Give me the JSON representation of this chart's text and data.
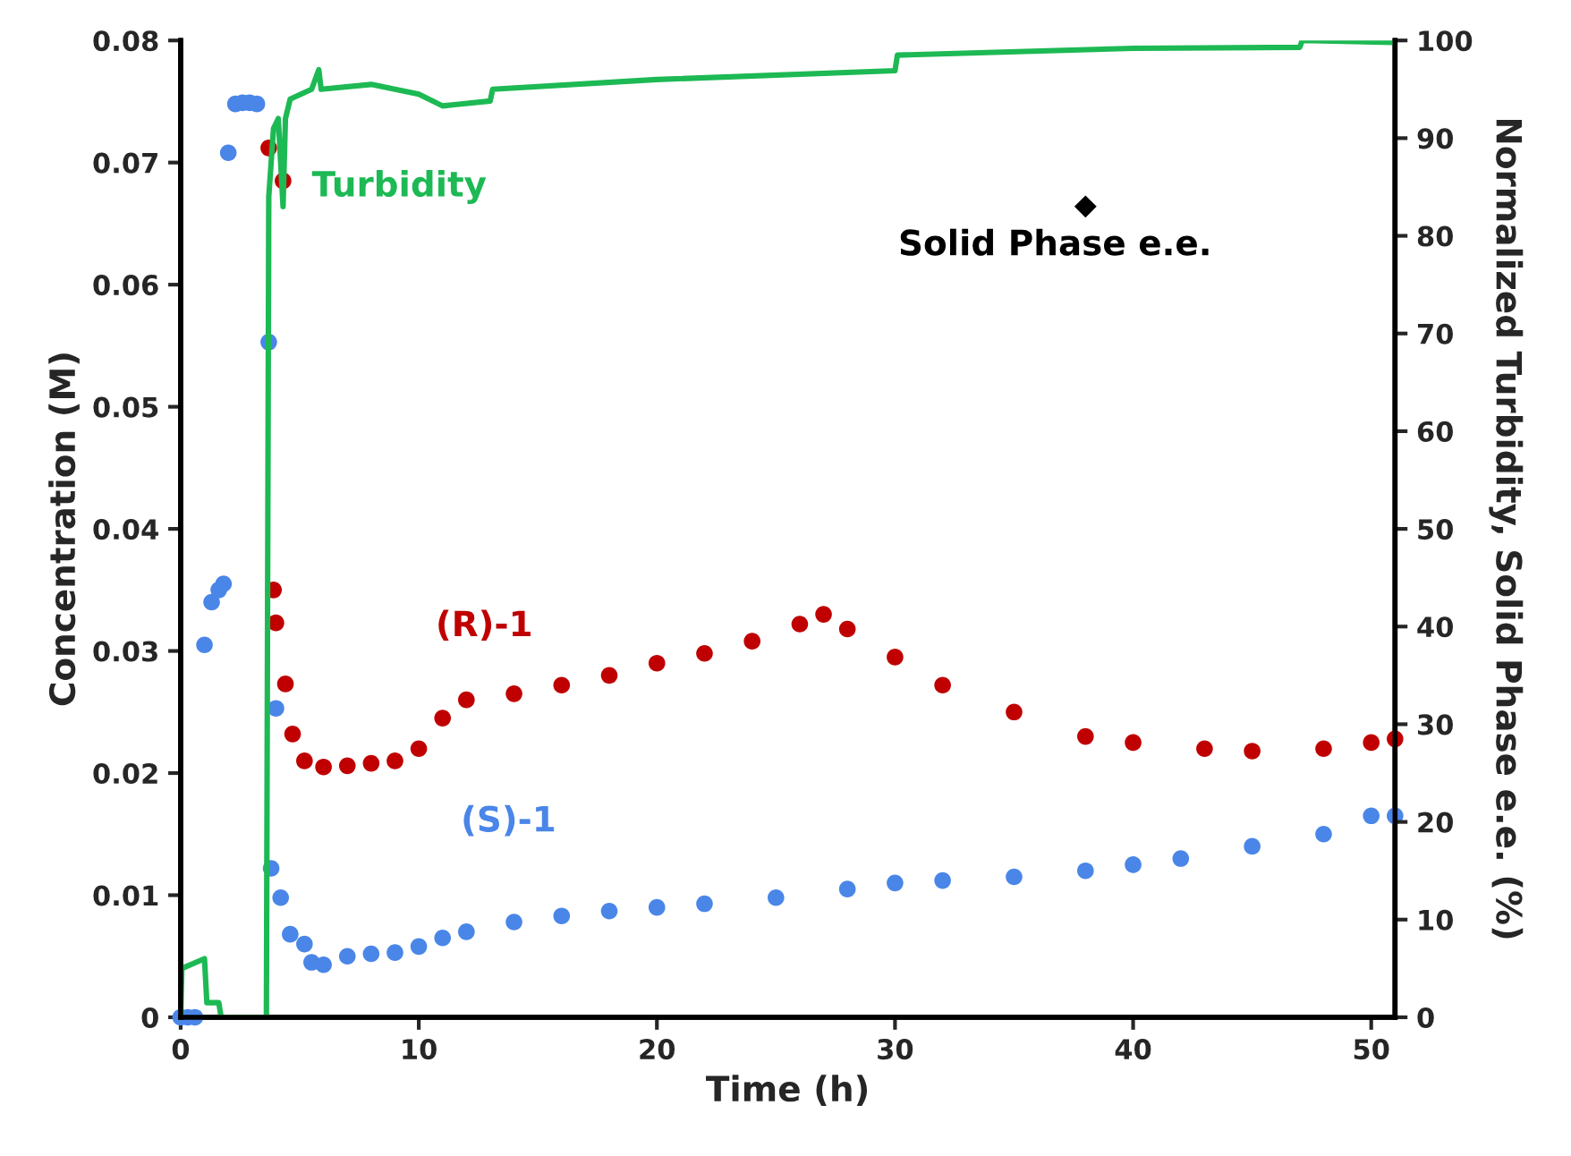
{
  "chart_data": {
    "type": "scatter",
    "xlabel": "Time (h)",
    "ylabel": "Concentration (M)",
    "y2label": "Normalized Turbidity, Solid Phase e.e. (%)",
    "xlim": [
      0,
      51
    ],
    "xticks": [
      0,
      10,
      20,
      30,
      40,
      50
    ],
    "ylim": [
      0,
      0.08
    ],
    "yticks": [
      0,
      0.01,
      0.02,
      0.03,
      0.04,
      0.05,
      0.06,
      0.07,
      0.08
    ],
    "y2lim": [
      0,
      100
    ],
    "y2ticks": [
      0,
      10,
      20,
      30,
      40,
      50,
      60,
      70,
      80,
      90,
      100
    ],
    "grid": false,
    "legend": false,
    "series": [
      {
        "name": "Turbidity",
        "type": "line",
        "axis": "y2",
        "color": "#1db954",
        "marker": "none",
        "line_style": "solid",
        "x": [
          0,
          0.05,
          1.0,
          1.1,
          1.6,
          1.7,
          3.6,
          3.7,
          3.9,
          4.1,
          4.3,
          4.4,
          4.6,
          5.5,
          5.8,
          5.9,
          8,
          10,
          11,
          13,
          13.1,
          20,
          30,
          30.1,
          40,
          47,
          47.1,
          51
        ],
        "values": [
          0,
          5,
          6,
          1.5,
          1.5,
          0,
          0,
          84,
          91,
          92,
          83,
          92,
          94,
          95,
          97,
          95,
          95.5,
          94.5,
          93.3,
          93.8,
          95,
          96,
          96.9,
          98.5,
          99.2,
          99.3,
          100,
          99.8
        ]
      },
      {
        "name": "(R)-1",
        "color": "#c00000",
        "marker": "circle",
        "x": [
          3.7,
          4.3,
          3.9,
          4.0,
          4.4,
          4.7,
          5.2,
          6,
          7,
          8,
          9,
          10,
          11,
          12,
          14,
          16,
          18,
          20,
          22,
          24,
          26,
          27,
          28,
          30,
          32,
          35,
          38,
          40,
          43,
          45,
          48,
          50,
          51
        ],
        "values": [
          0.0712,
          0.0685,
          0.035,
          0.0323,
          0.0273,
          0.0232,
          0.021,
          0.0205,
          0.0206,
          0.0208,
          0.021,
          0.022,
          0.0245,
          0.026,
          0.0265,
          0.0272,
          0.028,
          0.029,
          0.0298,
          0.0308,
          0.0322,
          0.033,
          0.0318,
          0.0295,
          0.0272,
          0.025,
          0.023,
          0.0225,
          0.022,
          0.0218,
          0.022,
          0.0225,
          0.0228
        ]
      },
      {
        "name": "(S)-1",
        "color": "#4a86e8",
        "marker": "circle",
        "x": [
          0,
          0.3,
          0.6,
          1.0,
          1.3,
          1.6,
          1.8,
          2.0,
          2.3,
          2.6,
          2.9,
          3.2,
          3.7,
          4.0,
          3.8,
          4.2,
          4.6,
          5.2,
          5.5,
          6,
          7,
          8,
          9,
          10,
          11,
          12,
          14,
          16,
          18,
          20,
          22,
          25,
          28,
          30,
          32,
          35,
          38,
          40,
          42,
          45,
          48,
          50,
          51
        ],
        "values": [
          0,
          0,
          0,
          0.0305,
          0.034,
          0.035,
          0.0355,
          0.0708,
          0.0748,
          0.0749,
          0.0749,
          0.0748,
          0.0553,
          0.0253,
          0.0122,
          0.0098,
          0.0068,
          0.006,
          0.0045,
          0.0043,
          0.005,
          0.0052,
          0.0053,
          0.0058,
          0.0065,
          0.007,
          0.0078,
          0.0083,
          0.0087,
          0.009,
          0.0093,
          0.0098,
          0.0105,
          0.011,
          0.0112,
          0.0115,
          0.012,
          0.0125,
          0.013,
          0.014,
          0.015,
          0.0165,
          0.0165
        ]
      },
      {
        "name": "Solid Phase e.e.",
        "axis": "y2",
        "color": "#000000",
        "marker": "diamond",
        "x": [
          38.0
        ],
        "values": [
          83
        ]
      }
    ]
  }
}
